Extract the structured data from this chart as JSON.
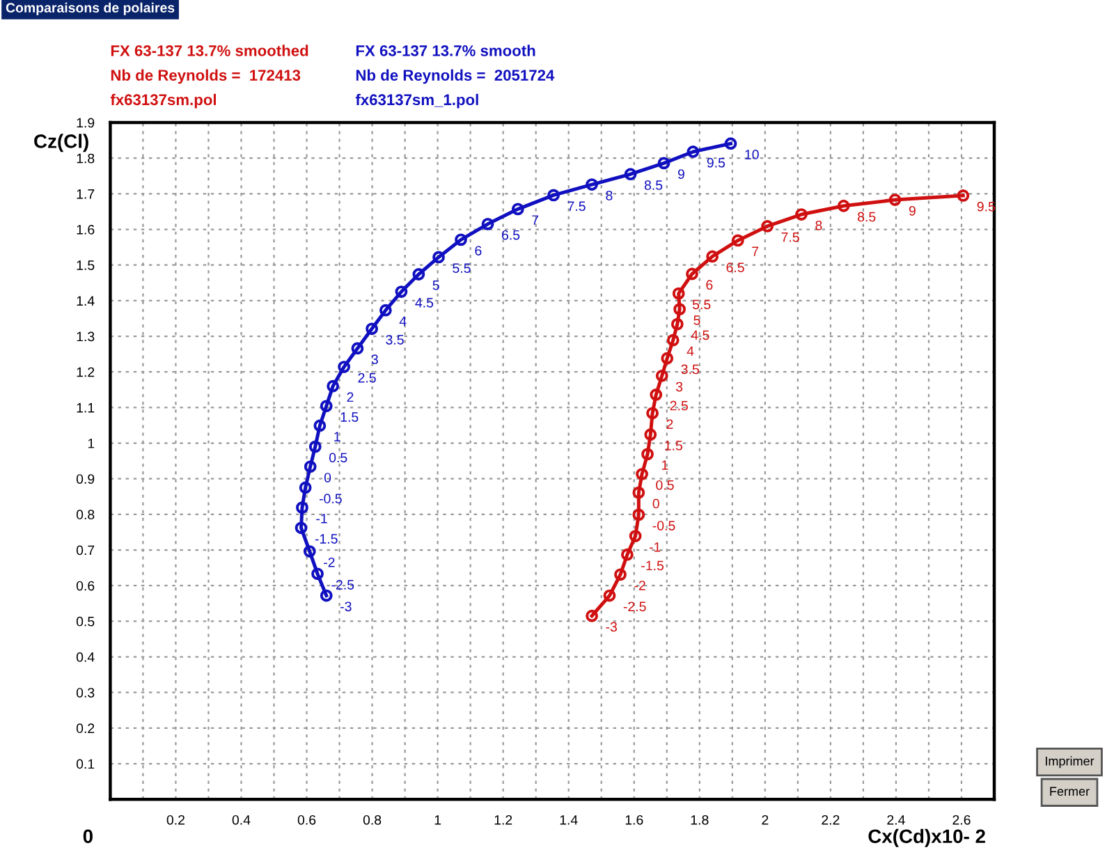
{
  "chart_data": {
    "type": "line",
    "title": "Comparaisons de polaires",
    "xlabel": "Cx(Cd)x10- 2",
    "ylabel": "Cz(Cl)",
    "annotations": [
      "0",
      "Imprimer",
      "Fermer",
      {
        "text": "-3",
        "x": 1.471,
        "y": 0.515
      },
      {
        "text": "-2.5",
        "x": 1.525,
        "y": 0.572
      },
      {
        "text": "-2",
        "x": 1.558,
        "y": 0.631
      },
      {
        "text": "-1.5",
        "x": 1.579,
        "y": 0.687
      },
      {
        "text": "-1",
        "x": 1.604,
        "y": 0.739
      },
      {
        "text": "-0.5",
        "x": 1.614,
        "y": 0.799
      },
      {
        "text": "0",
        "x": 1.614,
        "y": 0.861
      },
      {
        "text": "0.5",
        "x": 1.624,
        "y": 0.913
      },
      {
        "text": "1",
        "x": 1.641,
        "y": 0.969
      },
      {
        "text": "1.5",
        "x": 1.65,
        "y": 1.024
      },
      {
        "text": "2",
        "x": 1.656,
        "y": 1.084
      },
      {
        "text": "2.5",
        "x": 1.667,
        "y": 1.136
      },
      {
        "text": "3",
        "x": 1.685,
        "y": 1.189
      },
      {
        "text": "3.5",
        "x": 1.701,
        "y": 1.238
      },
      {
        "text": "4",
        "x": 1.719,
        "y": 1.289
      },
      {
        "text": "4.5",
        "x": 1.732,
        "y": 1.334
      },
      {
        "text": "5",
        "x": 1.739,
        "y": 1.376
      },
      {
        "text": "5.5",
        "x": 1.736,
        "y": 1.42
      },
      {
        "text": "6",
        "x": 1.777,
        "y": 1.475
      },
      {
        "text": "6.5",
        "x": 1.839,
        "y": 1.524
      },
      {
        "text": "7",
        "x": 1.917,
        "y": 1.569
      },
      {
        "text": "7.5",
        "x": 2.007,
        "y": 1.609
      },
      {
        "text": "8",
        "x": 2.111,
        "y": 1.642
      },
      {
        "text": "8.5",
        "x": 2.24,
        "y": 1.666
      },
      {
        "text": "9",
        "x": 2.397,
        "y": 1.683
      },
      {
        "text": "9.5",
        "x": 2.605,
        "y": 1.695
      },
      {
        "text": "-3",
        "x": 0.66,
        "y": 0.572
      },
      {
        "text": "-2.5",
        "x": 0.633,
        "y": 0.633
      },
      {
        "text": "-2",
        "x": 0.609,
        "y": 0.696
      },
      {
        "text": "-1.5",
        "x": 0.583,
        "y": 0.762
      },
      {
        "text": "-1",
        "x": 0.586,
        "y": 0.819
      },
      {
        "text": "-0.5",
        "x": 0.596,
        "y": 0.875
      },
      {
        "text": "0",
        "x": 0.611,
        "y": 0.934
      },
      {
        "text": "0.5",
        "x": 0.626,
        "y": 0.99
      },
      {
        "text": "1",
        "x": 0.64,
        "y": 1.049
      },
      {
        "text": "1.5",
        "x": 0.66,
        "y": 1.104
      },
      {
        "text": "2",
        "x": 0.68,
        "y": 1.16
      },
      {
        "text": "2.5",
        "x": 0.714,
        "y": 1.214
      },
      {
        "text": "3",
        "x": 0.755,
        "y": 1.266
      },
      {
        "text": "3.5",
        "x": 0.799,
        "y": 1.321
      },
      {
        "text": "4",
        "x": 0.841,
        "y": 1.373
      },
      {
        "text": "4.5",
        "x": 0.889,
        "y": 1.425
      },
      {
        "text": "5",
        "x": 0.942,
        "y": 1.474
      },
      {
        "text": "5.5",
        "x": 1.003,
        "y": 1.522
      },
      {
        "text": "6",
        "x": 1.071,
        "y": 1.571
      },
      {
        "text": "6.5",
        "x": 1.153,
        "y": 1.615
      },
      {
        "text": "7",
        "x": 1.245,
        "y": 1.657
      },
      {
        "text": "7.5",
        "x": 1.354,
        "y": 1.696
      },
      {
        "text": "8",
        "x": 1.471,
        "y": 1.726
      },
      {
        "text": "8.5",
        "x": 1.589,
        "y": 1.755
      },
      {
        "text": "9",
        "x": 1.691,
        "y": 1.786
      },
      {
        "text": "9.5",
        "x": 1.78,
        "y": 1.818
      },
      {
        "text": "10",
        "x": 1.895,
        "y": 1.841
      }
    ],
    "legend": "top left",
    "marker": "circle",
    "line_style": "solid",
    "grid": true,
    "xlim": [
      0,
      2.7
    ],
    "ylim": [
      0,
      1.9
    ],
    "xticks": [
      {
        "value": 0.1,
        "label": null
      },
      0.2,
      {
        "value": 0.3,
        "label": null
      },
      0.4,
      {
        "value": 0.5,
        "label": null
      },
      0.6,
      {
        "value": 0.7,
        "label": null
      },
      0.8,
      {
        "value": 0.9,
        "label": null
      },
      1,
      {
        "value": 1.1,
        "label": null
      },
      1.2,
      {
        "value": 1.3,
        "label": null
      },
      1.4,
      {
        "value": 1.5,
        "label": null
      },
      1.6,
      {
        "value": 1.7,
        "label": null
      },
      1.8,
      {
        "value": 1.9,
        "label": null
      },
      2,
      {
        "value": 2.1,
        "label": null
      },
      2.2,
      {
        "value": 2.3,
        "label": null
      },
      2.4,
      {
        "value": 2.5,
        "label": null
      },
      2.6
    ],
    "yticks": [
      0.1,
      0.2,
      0.3,
      0.4,
      0.5,
      0.6,
      0.7,
      0.8,
      0.9,
      1,
      1.1,
      1.2,
      1.3,
      1.4,
      1.5,
      1.6,
      1.7,
      1.8,
      1.9
    ],
    "series": [
      {
        "name": "FX 63-137 13.7% smoothed\nNb de Reynolds =  172413\nfx63137sm.pol",
        "color": "#d01010",
        "x": [
          1.471,
          1.525,
          1.558,
          1.579,
          1.604,
          1.614,
          1.614,
          1.624,
          1.641,
          1.65,
          1.656,
          1.667,
          1.685,
          1.701,
          1.719,
          1.732,
          1.739,
          1.736,
          1.777,
          1.839,
          1.917,
          2.007,
          2.111,
          2.24,
          2.397,
          2.605
        ],
        "values": [
          0.515,
          0.572,
          0.631,
          0.687,
          0.739,
          0.799,
          0.861,
          0.913,
          0.969,
          1.024,
          1.084,
          1.136,
          1.189,
          1.238,
          1.289,
          1.334,
          1.376,
          1.42,
          1.475,
          1.524,
          1.569,
          1.609,
          1.642,
          1.666,
          1.683,
          1.695
        ]
      },
      {
        "name": "FX 63-137 13.7% smooth\nNb de Reynolds =  2051724\nfx63137sm_1.pol",
        "color": "#1010c0",
        "x": [
          0.66,
          0.633,
          0.609,
          0.583,
          0.586,
          0.596,
          0.611,
          0.626,
          0.64,
          0.66,
          0.68,
          0.714,
          0.755,
          0.799,
          0.841,
          0.889,
          0.942,
          1.003,
          1.071,
          1.153,
          1.245,
          1.354,
          1.471,
          1.589,
          1.691,
          1.78,
          1.895
        ],
        "values": [
          0.572,
          0.633,
          0.696,
          0.762,
          0.819,
          0.875,
          0.934,
          0.99,
          1.049,
          1.104,
          1.16,
          1.214,
          1.266,
          1.321,
          1.373,
          1.425,
          1.474,
          1.522,
          1.571,
          1.615,
          1.657,
          1.696,
          1.726,
          1.755,
          1.786,
          1.818,
          1.841
        ]
      }
    ]
  }
}
